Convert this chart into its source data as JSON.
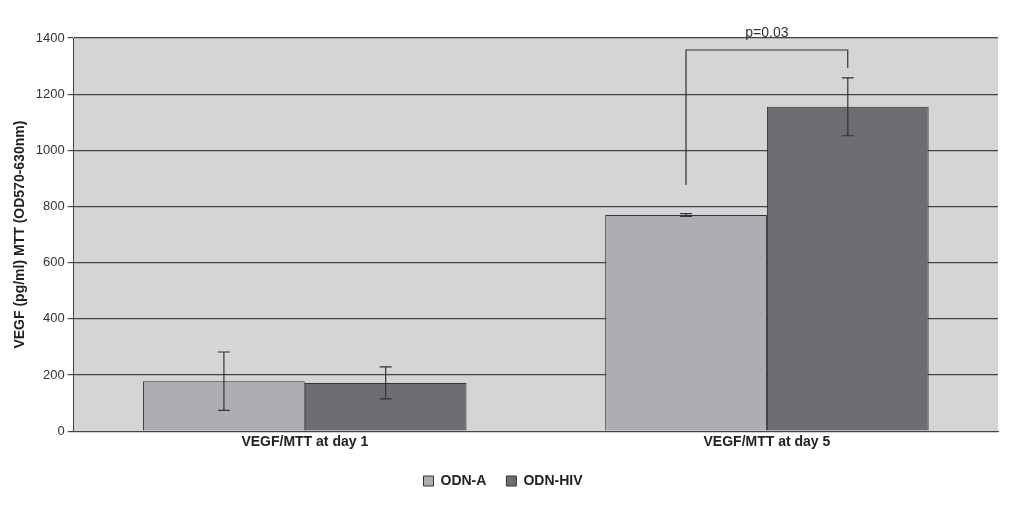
{
  "chart_data": {
    "type": "bar",
    "ylabel": "VEGF (pg/ml) MTT (OD570-630nm)",
    "categories": [
      "VEGF/MTT at day 1",
      "VEGF/MTT at day 5"
    ],
    "series": [
      {
        "name": "ODN-A",
        "color": "#adaeb2",
        "values": [
          178,
          770
        ],
        "errors": [
          104,
          5
        ]
      },
      {
        "name": "ODN-HIV",
        "color": "#6d6e72",
        "values": [
          172,
          1155
        ],
        "errors": [
          57,
          103
        ]
      }
    ],
    "ylim": [
      0,
      1400
    ],
    "yticks": [
      0,
      200,
      400,
      600,
      800,
      1000,
      1200,
      1400
    ],
    "grid": "y",
    "legend": "bottom",
    "annotations": [
      "p=0.03"
    ]
  }
}
